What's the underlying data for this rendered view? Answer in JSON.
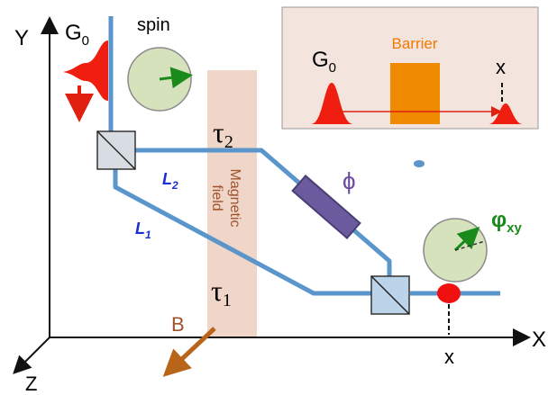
{
  "labels": {
    "y_axis": "Y",
    "x_axis": "X",
    "z_axis": "Z",
    "source": {
      "main": "G",
      "sub": "0"
    },
    "spin": "spin",
    "tau2": {
      "main": "τ",
      "sub": "2"
    },
    "tau1": {
      "main": "τ",
      "sub": "1"
    },
    "path2": {
      "main": "L",
      "sub": "2"
    },
    "path1": {
      "main": "L",
      "sub": "1"
    },
    "field": [
      "Magnetic",
      "field"
    ],
    "phase": "ϕ",
    "output_phase": {
      "main": "φ",
      "sub": "xy"
    },
    "b_field": "B",
    "detector": "x"
  },
  "inset": {
    "barrier": "Barrier",
    "source": {
      "main": "G",
      "sub": "0"
    },
    "detector": "x"
  }
}
